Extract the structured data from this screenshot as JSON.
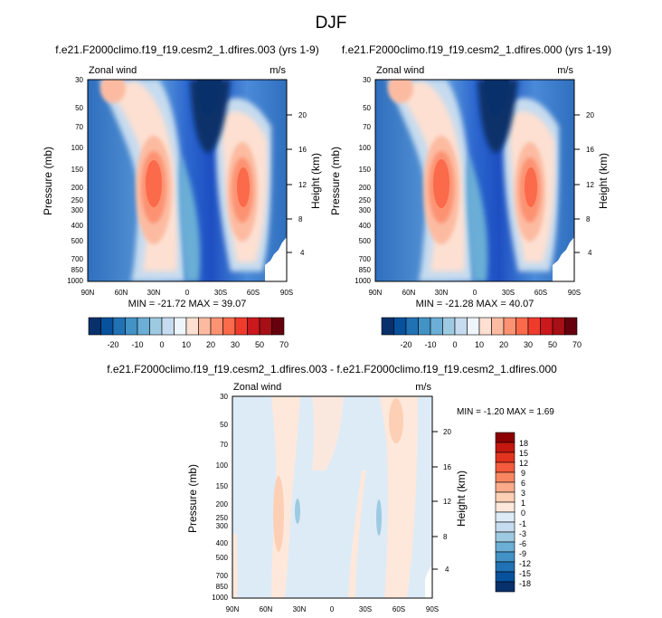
{
  "title": "DJF",
  "panels": [
    {
      "title": "f.e21.F2000climo.f19_f19.cesm2_1.dfires.003 (yrs 1-9)",
      "left_label": "Zonal wind",
      "right_label": "m/s",
      "ylabel": "Pressure (mb)",
      "ylabel_right": "Height (km)",
      "minmax": "MIN = -21.72  MAX = 39.07"
    },
    {
      "title": "f.e21.F2000climo.f19_f19.cesm2_1.dfires.000 (yrs 1-19)",
      "left_label": "Zonal wind",
      "right_label": "m/s",
      "ylabel": "Pressure (mb)",
      "ylabel_right": "Height (km)",
      "minmax": "MIN = -21.28  MAX = 40.07"
    },
    {
      "title": "f.e21.F2000climo.f19_f19.cesm2_1.dfires.003 - f.e21.F2000climo.f19_f19.cesm2_1.dfires.000",
      "left_label": "Zonal wind",
      "right_label": "m/s",
      "ylabel": "Pressure (mb)",
      "ylabel_right": "Height (km)",
      "minmax": "MIN = -1.20  MAX =  1.69"
    }
  ],
  "axes": {
    "x_ticks": [
      "90N",
      "60N",
      "30N",
      "0",
      "30S",
      "60S",
      "90S"
    ],
    "p_ticks": [
      "30",
      "50",
      "70",
      "100",
      "150",
      "200",
      "250",
      "300",
      "400",
      "500",
      "700",
      "850",
      "1000"
    ],
    "p_ticks_small": [
      "30",
      "50",
      "70",
      "100",
      "150",
      "200",
      "300",
      "400",
      "500",
      "700",
      "850",
      "1000"
    ],
    "z_ticks": [
      "4",
      "8",
      "12",
      "16",
      "20"
    ]
  },
  "colorbar_top": {
    "labels": [
      "-20",
      "-10",
      "0",
      "10",
      "20",
      "30",
      "50",
      "70"
    ],
    "colors": [
      "#08306b",
      "#08519c",
      "#2171b5",
      "#4292c6",
      "#6baed6",
      "#9ecae1",
      "#c6dbef",
      "#eef5fb",
      "#fde0d2",
      "#fcbba1",
      "#fc9272",
      "#fb6a4a",
      "#ef3b2c",
      "#cb181d",
      "#a50f15",
      "#67000d"
    ]
  },
  "colorbar_diff": {
    "labels": [
      "18",
      "15",
      "12",
      "9",
      "6",
      "3",
      "1",
      "0",
      "-1",
      "-3",
      "-6",
      "-9",
      "-12",
      "-15",
      "-18"
    ],
    "colors": [
      "#8b0000",
      "#c3170f",
      "#e2331e",
      "#f45a3c",
      "#f88660",
      "#fbab8a",
      "#fdd0b5",
      "#fde8db",
      "#ddebf7",
      "#c6dbef",
      "#9ecae1",
      "#6baed6",
      "#4292c6",
      "#2171b5",
      "#08519c",
      "#08306b"
    ]
  },
  "chart_data": [
    {
      "type": "heatmap",
      "title": "f.e21.F2000climo.f19_f19.cesm2_1.dfires.003 (yrs 1-9)",
      "ylabel": "Pressure (mb)",
      "ylabel_right": "Height (km)",
      "xlim": [
        90,
        -90
      ],
      "ylim": [
        1000,
        30
      ],
      "yscale": "log",
      "levels": [
        -20,
        -10,
        0,
        10,
        20,
        30,
        50,
        70
      ],
      "min": -21.72,
      "max": 39.07,
      "features": [
        {
          "kind": "jet",
          "lat": 29,
          "p": 210,
          "value": 36
        },
        {
          "kind": "jet",
          "lat": -47,
          "p": 210,
          "value": 34
        },
        {
          "kind": "easterly",
          "lat": -8,
          "p": 30,
          "value": -21
        }
      ]
    },
    {
      "type": "heatmap",
      "title": "f.e21.F2000climo.f19_f19.cesm2_1.dfires.000 (yrs 1-19)",
      "ylabel": "Pressure (mb)",
      "ylabel_right": "Height (km)",
      "xlim": [
        90,
        -90
      ],
      "ylim": [
        1000,
        30
      ],
      "yscale": "log",
      "levels": [
        -20,
        -10,
        0,
        10,
        20,
        30,
        50,
        70
      ],
      "min": -21.28,
      "max": 40.07,
      "features": [
        {
          "kind": "jet",
          "lat": 29,
          "p": 210,
          "value": 37
        },
        {
          "kind": "jet",
          "lat": -47,
          "p": 210,
          "value": 34
        },
        {
          "kind": "easterly",
          "lat": -8,
          "p": 30,
          "value": -21
        }
      ]
    },
    {
      "type": "heatmap",
      "title": "f.e21.F2000climo.f19_f19.cesm2_1.dfires.003 - f.e21.F2000climo.f19_f19.cesm2_1.dfires.000",
      "ylabel": "Pressure (mb)",
      "ylabel_right": "Height (km)",
      "xlim": [
        90,
        -90
      ],
      "ylim": [
        1000,
        30
      ],
      "yscale": "log",
      "levels": [
        -18,
        -15,
        -12,
        -9,
        -6,
        -3,
        -1,
        0,
        1,
        3,
        6,
        9,
        12,
        15,
        18
      ],
      "min": -1.2,
      "max": 1.69,
      "features": [
        {
          "kind": "positive",
          "lat": -55,
          "p": 100,
          "value": 1.5
        },
        {
          "kind": "positive",
          "lat": 40,
          "p": 250,
          "value": 1.2
        },
        {
          "kind": "negative",
          "lat": 20,
          "p": 230,
          "value": -1.0
        }
      ]
    }
  ]
}
